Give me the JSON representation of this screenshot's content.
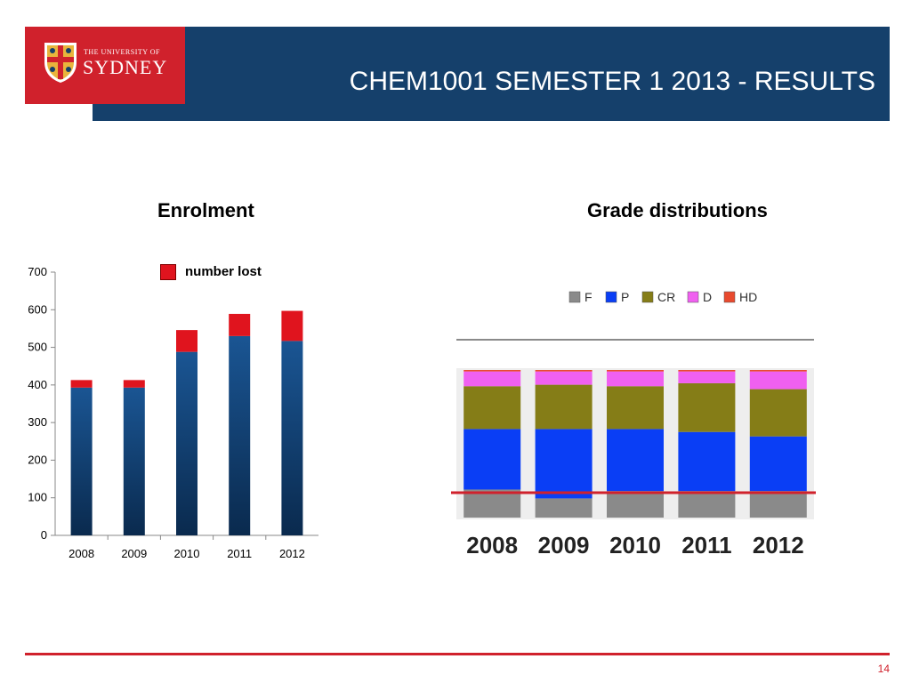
{
  "header": {
    "logo_small": "THE UNIVERSITY OF",
    "logo_big": "SYDNEY",
    "title": "CHEM1001 SEMESTER 1 2013 - RESULTS",
    "colors": {
      "bar": "#15406b",
      "logo_bg": "#d0212c"
    }
  },
  "enrolment": {
    "title": "Enrolment",
    "legend_label": "number lost"
  },
  "grades": {
    "title": "Grade distributions"
  },
  "footer": {
    "page_number": "14"
  },
  "chart_data": [
    {
      "type": "bar",
      "stacked": true,
      "title": "Enrolment",
      "categories": [
        "2008",
        "2009",
        "2010",
        "2011",
        "2012"
      ],
      "series": [
        {
          "values": [
            393,
            393,
            488,
            530,
            517
          ],
          "color": "#0f3a66"
        },
        {
          "name": "number lost",
          "values": [
            20,
            20,
            58,
            59,
            80
          ],
          "color": "#e0141e"
        }
      ],
      "ylim": [
        0,
        700
      ],
      "yticks": [
        0,
        100,
        200,
        300,
        400,
        500,
        600,
        700
      ],
      "grid": false,
      "legend": "top-center"
    },
    {
      "type": "bar",
      "stacked": true,
      "percent": true,
      "title": "Grade distributions",
      "categories": [
        "2008",
        "2009",
        "2010",
        "2011",
        "2012"
      ],
      "series": [
        {
          "name": "F",
          "values": [
            19,
            13,
            18,
            18,
            18
          ],
          "color": "#8a8a8a"
        },
        {
          "name": "P",
          "values": [
            41,
            47,
            42,
            40,
            37
          ],
          "color": "#0a3ef5"
        },
        {
          "name": "CR",
          "values": [
            29,
            30,
            29,
            33,
            32
          ],
          "color": "#857d17"
        },
        {
          "name": "D",
          "values": [
            10,
            9,
            10,
            8,
            12
          ],
          "color": "#f060f0"
        },
        {
          "name": "HD",
          "values": [
            1,
            1,
            1,
            1,
            1
          ],
          "color": "#e84a2e"
        }
      ],
      "reference_line_color": "#d0212c",
      "legend": "top"
    }
  ]
}
